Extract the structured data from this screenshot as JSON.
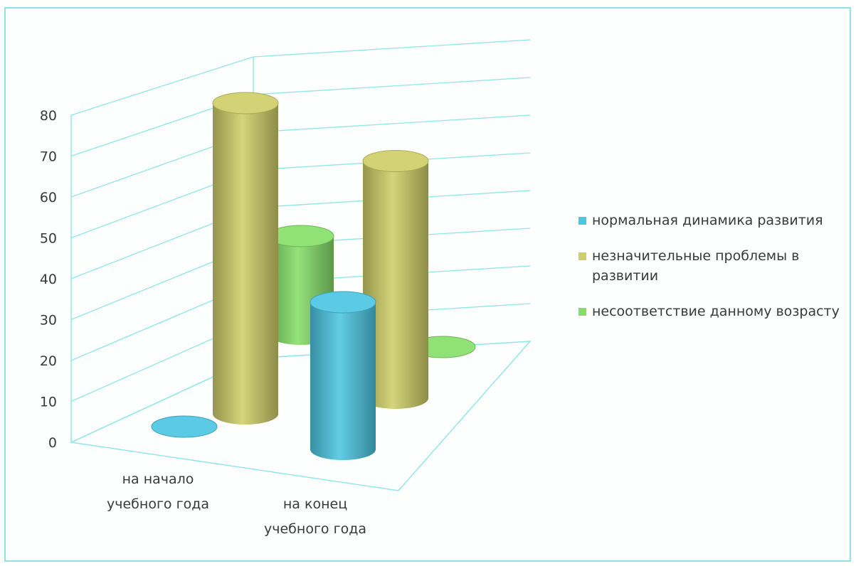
{
  "chart_data": {
    "type": "bar",
    "style": "3d-cylinder",
    "categories": [
      "на начало учебного года",
      "на конец учебного года"
    ],
    "series": [
      {
        "name": "нормальная динамика развития",
        "values": [
          0,
          36
        ],
        "color": "#4dc6e3"
      },
      {
        "name": "незначительные проблемы в развитии",
        "values": [
          76,
          58
        ],
        "color": "#cfcf6a"
      },
      {
        "name": "несоответствие данному возрасту",
        "values": [
          24,
          0
        ],
        "color": "#86de6a"
      }
    ],
    "yticks": [
      0,
      10,
      20,
      30,
      40,
      50,
      60,
      70,
      80
    ],
    "ylim": [
      0,
      80
    ],
    "grid": true,
    "legend_position": "right",
    "title": "",
    "xlabel": "",
    "ylabel": ""
  },
  "axis": {
    "categories_wrapped": [
      [
        "на начало",
        "учебного года"
      ],
      [
        "на конец",
        "учебного года"
      ]
    ]
  }
}
